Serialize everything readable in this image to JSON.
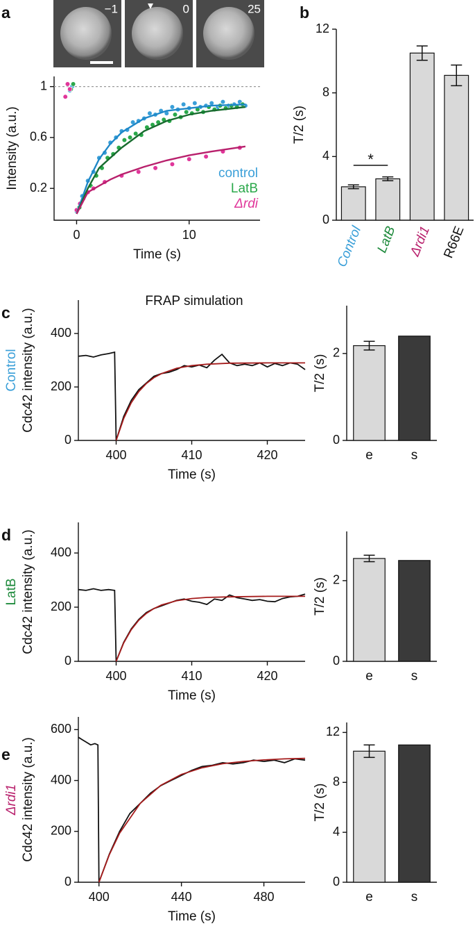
{
  "chart_data": [
    {
      "type": "scatter",
      "panel_label": "a",
      "images": [
        {
          "label": "−1"
        },
        {
          "label": "0"
        },
        {
          "label": "25"
        }
      ],
      "xlabel": "Time (s)",
      "ylabel": "Intensity (a.u.)",
      "xlim": [
        -2,
        16.3
      ],
      "ylim": [
        -0.05,
        1.08
      ],
      "xticks": [
        0,
        10
      ],
      "yticks": [
        0.2,
        0.6,
        1
      ],
      "reference_line": 1,
      "fit_x": [
        0,
        1,
        2,
        3,
        4,
        6,
        8,
        10,
        12,
        15
      ],
      "series": [
        {
          "name": "control",
          "color": "#3a9fd8",
          "fit_color": "#1f88c8",
          "x": [
            -0.6,
            -0.4,
            0,
            0.5,
            1,
            1.5,
            2,
            2.5,
            3,
            3.5,
            4,
            4.5,
            5,
            5.5,
            6,
            6.5,
            7,
            7.5,
            8,
            8.5,
            9,
            9.5,
            10,
            10.5,
            11,
            11.5,
            12,
            12.5,
            13,
            13.5,
            14,
            14.5,
            15
          ],
          "values": [
            0.97,
            1.0,
            0.02,
            0.14,
            0.26,
            0.33,
            0.44,
            0.48,
            0.56,
            0.6,
            0.65,
            0.66,
            0.72,
            0.73,
            0.75,
            0.79,
            0.78,
            0.81,
            0.79,
            0.84,
            0.82,
            0.86,
            0.83,
            0.87,
            0.84,
            0.85,
            0.87,
            0.83,
            0.88,
            0.85,
            0.86,
            0.88,
            0.85
          ],
          "fit": [
            0,
            0.25,
            0.43,
            0.55,
            0.64,
            0.75,
            0.81,
            0.83,
            0.85,
            0.86
          ]
        },
        {
          "name": "LatB",
          "color": "#2aa84a",
          "fit_color": "#176b2e",
          "x": [
            -0.5,
            -0.3,
            0.25,
            0.75,
            1.25,
            1.75,
            2.25,
            2.75,
            3.25,
            3.75,
            4.25,
            4.75,
            5.25,
            5.75,
            6.25,
            6.75,
            7.25,
            7.75,
            8.25,
            8.75,
            9.25,
            9.75,
            10.25,
            10.75,
            11.25,
            11.75,
            12.25,
            12.75,
            13.25,
            13.75,
            14.25,
            14.75
          ],
          "values": [
            0.98,
            1.02,
            0.05,
            0.15,
            0.22,
            0.3,
            0.36,
            0.44,
            0.47,
            0.52,
            0.58,
            0.6,
            0.63,
            0.62,
            0.68,
            0.7,
            0.72,
            0.74,
            0.73,
            0.78,
            0.76,
            0.8,
            0.79,
            0.82,
            0.8,
            0.84,
            0.82,
            0.85,
            0.83,
            0.85,
            0.84,
            0.86
          ],
          "fit": [
            0,
            0.2,
            0.36,
            0.44,
            0.52,
            0.65,
            0.73,
            0.78,
            0.81,
            0.84
          ]
        },
        {
          "name": "Δrdi",
          "color": "#e0369a",
          "fit_color": "#b8206c",
          "x": [
            -1,
            -0.8,
            -0.6,
            0,
            0.3,
            0.6,
            1,
            1.5,
            2.5,
            4,
            5.5,
            7,
            8.5,
            10,
            11.5,
            13,
            14.5
          ],
          "values": [
            0.92,
            1.02,
            0.98,
            0.03,
            0.08,
            0.12,
            0.17,
            0.2,
            0.25,
            0.3,
            0.33,
            0.36,
            0.39,
            0.43,
            0.45,
            0.49,
            0.52
          ],
          "fit": [
            0,
            0.17,
            0.22,
            0.27,
            0.31,
            0.37,
            0.42,
            0.46,
            0.49,
            0.53
          ]
        }
      ]
    },
    {
      "type": "bar",
      "panel_label": "b",
      "ylabel": "T/2 (s)",
      "categories": [
        "Control",
        "LatB",
        "Δrdi1",
        "R66E"
      ],
      "category_colors": [
        "#3a9fd8",
        "#1e8a3c",
        "#b8206c",
        "#111111"
      ],
      "values": [
        2.1,
        2.6,
        10.5,
        9.1
      ],
      "errors": [
        0.12,
        0.12,
        0.45,
        0.65
      ],
      "colors": [
        "#d9d9d9",
        "#d9d9d9",
        "#d9d9d9",
        "#d9d9d9"
      ],
      "annotation": "*",
      "ylim": [
        0,
        12
      ],
      "yticks": [
        0,
        4,
        8,
        12
      ]
    },
    {
      "type": "line",
      "panel_label": "c",
      "title": "FRAP simulation",
      "row_label": "Control",
      "row_label_color": "#3a9fd8",
      "xlabel": "Time (s)",
      "ylabel": "Cdc42 intensity (a.u.)",
      "xlim": [
        395,
        425
      ],
      "ylim": [
        0,
        525
      ],
      "xticks": [
        400,
        410,
        420
      ],
      "yticks": [
        0,
        200,
        400
      ],
      "series": [
        {
          "color": "#111111",
          "x": [
            395,
            396,
            397,
            398,
            399,
            399.8,
            400,
            401,
            402,
            403,
            404,
            405,
            406,
            407,
            408,
            409,
            410,
            411,
            412,
            413,
            414,
            415,
            416,
            417,
            418,
            419,
            420,
            421,
            422,
            423,
            424,
            425
          ],
          "values": [
            315,
            318,
            312,
            320,
            325,
            330,
            0,
            90,
            150,
            190,
            215,
            240,
            250,
            255,
            265,
            280,
            275,
            282,
            272,
            300,
            322,
            290,
            280,
            285,
            280,
            290,
            275,
            288,
            280,
            290,
            285,
            265
          ]
        },
        {
          "color": "#a51c1c",
          "x": [
            400,
            401,
            402,
            403,
            404,
            405,
            406,
            408,
            410,
            412,
            415,
            420,
            425
          ],
          "values": [
            0,
            82,
            141,
            183,
            213,
            235,
            250,
            270,
            280,
            285,
            289,
            290,
            290
          ]
        }
      ]
    },
    {
      "type": "bar",
      "ylabel": "T/2 (s)",
      "categories": [
        "e",
        "s"
      ],
      "values": [
        2.18,
        2.4
      ],
      "errors": [
        0.1,
        null
      ],
      "colors": [
        "#d9d9d9",
        "#3a3a3a"
      ],
      "ylim": [
        0,
        3.1
      ],
      "yticks": [
        0,
        2
      ]
    },
    {
      "type": "line",
      "panel_label": "d",
      "row_label": "LatB",
      "row_label_color": "#1e8a3c",
      "xlabel": "Time (s)",
      "ylabel": "Cdc42 intensity (a.u.)",
      "xlim": [
        395,
        425
      ],
      "ylim": [
        0,
        513
      ],
      "xticks": [
        400,
        410,
        420
      ],
      "yticks": [
        0,
        200,
        400
      ],
      "series": [
        {
          "color": "#111111",
          "x": [
            395,
            396,
            397,
            398,
            399,
            399.8,
            400,
            401,
            402,
            403,
            404,
            405,
            406,
            407,
            408,
            409,
            410,
            411,
            412,
            413,
            414,
            415,
            416,
            417,
            418,
            419,
            420,
            421,
            422,
            423,
            424,
            425
          ],
          "values": [
            265,
            262,
            268,
            262,
            265,
            262,
            0,
            70,
            120,
            155,
            180,
            195,
            205,
            215,
            225,
            230,
            222,
            218,
            210,
            230,
            225,
            245,
            235,
            230,
            225,
            228,
            222,
            220,
            232,
            238,
            240,
            248
          ]
        },
        {
          "color": "#a51c1c",
          "x": [
            400,
            401,
            402,
            403,
            404,
            405,
            406,
            408,
            410,
            412,
            415,
            420,
            425
          ],
          "values": [
            0,
            68,
            117,
            152,
            177,
            195,
            208,
            224,
            232,
            236,
            238,
            240,
            240
          ]
        }
      ]
    },
    {
      "type": "bar",
      "ylabel": "T/2 (s)",
      "categories": [
        "e",
        "s"
      ],
      "values": [
        2.55,
        2.5
      ],
      "errors": [
        0.08,
        null
      ],
      "colors": [
        "#d9d9d9",
        "#3a3a3a"
      ],
      "ylim": [
        0,
        3.22
      ],
      "yticks": [
        0,
        2
      ]
    },
    {
      "type": "line",
      "panel_label": "e",
      "row_label": "Δrdi1",
      "row_label_color": "#b8206c",
      "xlabel": "Time (s)",
      "ylabel": "Cdc42 intensity (a.u.)",
      "xlim": [
        390,
        500
      ],
      "ylim": [
        0,
        650
      ],
      "xticks": [
        400,
        440,
        480
      ],
      "yticks": [
        0,
        200,
        400,
        600
      ],
      "series": [
        {
          "color": "#111111",
          "x": [
            390,
            392,
            394,
            396,
            398,
            399.5,
            400,
            405,
            410,
            415,
            420,
            425,
            430,
            435,
            440,
            445,
            450,
            455,
            460,
            465,
            470,
            475,
            480,
            485,
            490,
            495,
            500
          ],
          "values": [
            570,
            560,
            550,
            540,
            545,
            540,
            0,
            110,
            200,
            270,
            310,
            350,
            380,
            400,
            420,
            440,
            455,
            460,
            470,
            465,
            470,
            480,
            475,
            480,
            470,
            485,
            480
          ]
        },
        {
          "color": "#a51c1c",
          "x": [
            400,
            405,
            410,
            420,
            430,
            440,
            450,
            460,
            470,
            480,
            490,
            500
          ],
          "values": [
            0,
            108,
            193,
            310,
            381,
            424,
            450,
            466,
            475,
            481,
            485,
            487
          ]
        }
      ]
    },
    {
      "type": "bar",
      "ylabel": "T/2 (s)",
      "categories": [
        "e",
        "s"
      ],
      "values": [
        10.5,
        11
      ],
      "errors": [
        0.5,
        null
      ],
      "colors": [
        "#d9d9d9",
        "#3a3a3a"
      ],
      "ylim": [
        0,
        12.8
      ],
      "yticks": [
        0,
        4,
        8,
        12
      ]
    }
  ]
}
